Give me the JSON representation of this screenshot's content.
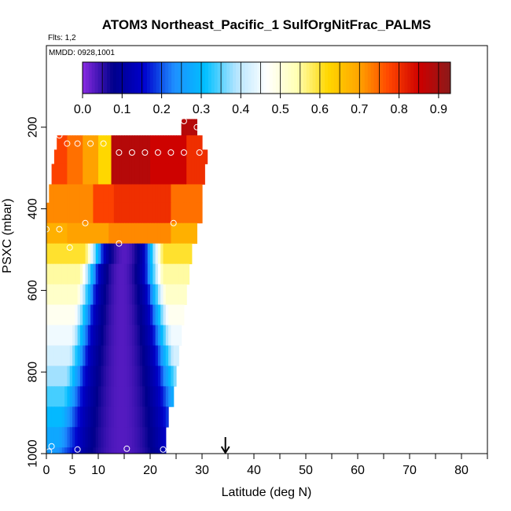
{
  "chart_data": {
    "type": "heatmap",
    "title": "ATOM3 Northeast_Pacific_1 SulfOrgNitFrac_PALMS",
    "subtitle": "Flts: 1,2",
    "annotation": "MMDD: 0928,1001",
    "xlabel": "Latitude (deg N)",
    "ylabel": "PSXC (mbar)",
    "xlim": [
      0,
      85
    ],
    "ylim": [
      1000,
      0
    ],
    "x_ticks": [
      0,
      5,
      10,
      20,
      30,
      40,
      50,
      60,
      70,
      80
    ],
    "y_ticks": [
      200,
      400,
      600,
      800,
      1000
    ],
    "grid": false,
    "colorbar": {
      "ticks": [
        "0.0",
        "0.1",
        "0.2",
        "0.3",
        "0.4",
        "0.5",
        "0.6",
        "0.7",
        "0.8",
        "0.9"
      ],
      "range": [
        0,
        0.93
      ],
      "colors": [
        "#8a2be2",
        "#00008b",
        "#0000cd",
        "#1e90ff",
        "#00bfff",
        "#b3e5ff",
        "#ffffff",
        "#ffffb3",
        "#ffd700",
        "#ffa500",
        "#ff4500",
        "#cc0000",
        "#8b1a1a"
      ]
    },
    "marker": {
      "x": 34.5,
      "label": "down-arrow"
    },
    "bands": [
      {
        "p_top": 180,
        "p_bot": 220,
        "lat_start": 26,
        "lat_end": 29,
        "profile": "red_top"
      },
      {
        "p_top": 220,
        "p_bot": 255,
        "lat_start": 2,
        "lat_end": 30,
        "profile": "upper"
      },
      {
        "p_top": 255,
        "p_bot": 290,
        "lat_start": 1.5,
        "lat_end": 31,
        "profile": "upper"
      },
      {
        "p_top": 290,
        "p_bot": 340,
        "lat_start": 1,
        "lat_end": 30.5,
        "profile": "upper"
      },
      {
        "p_top": 340,
        "p_bot": 385,
        "lat_start": 0.5,
        "lat_end": 30,
        "profile": "mid_upper"
      },
      {
        "p_top": 385,
        "p_bot": 435,
        "lat_start": 0,
        "lat_end": 30,
        "profile": "mid_upper"
      },
      {
        "p_top": 435,
        "p_bot": 485,
        "lat_start": 0,
        "lat_end": 29,
        "profile": "mid_lower"
      },
      {
        "p_top": 485,
        "p_bot": 535,
        "lat_start": 0,
        "lat_end": 28,
        "profile": "lower",
        "dip_center": 15,
        "dip_width": 4.0,
        "edge_value": 0.6
      },
      {
        "p_top": 535,
        "p_bot": 585,
        "lat_start": 0,
        "lat_end": 27.5,
        "profile": "lower",
        "dip_center": 14.5,
        "dip_width": 4.5,
        "edge_value": 0.55
      },
      {
        "p_top": 585,
        "p_bot": 635,
        "lat_start": 0,
        "lat_end": 27,
        "profile": "lower",
        "dip_center": 14.5,
        "dip_width": 5.0,
        "edge_value": 0.52
      },
      {
        "p_top": 635,
        "p_bot": 685,
        "lat_start": 0,
        "lat_end": 26.5,
        "profile": "lower",
        "dip_center": 14.5,
        "dip_width": 5.5,
        "edge_value": 0.48
      },
      {
        "p_top": 685,
        "p_bot": 735,
        "lat_start": 0,
        "lat_end": 26,
        "profile": "lower",
        "dip_center": 14.5,
        "dip_width": 6.0,
        "edge_value": 0.45
      },
      {
        "p_top": 735,
        "p_bot": 785,
        "lat_start": 0,
        "lat_end": 25.5,
        "profile": "lower",
        "dip_center": 14.5,
        "dip_width": 6.5,
        "edge_value": 0.42
      },
      {
        "p_top": 785,
        "p_bot": 835,
        "lat_start": 0,
        "lat_end": 25,
        "profile": "lower",
        "dip_center": 14.5,
        "dip_width": 7.0,
        "edge_value": 0.38
      },
      {
        "p_top": 835,
        "p_bot": 885,
        "lat_start": 0,
        "lat_end": 24.5,
        "profile": "lower",
        "dip_center": 14.5,
        "dip_width": 7.5,
        "edge_value": 0.34
      },
      {
        "p_top": 885,
        "p_bot": 935,
        "lat_start": 0,
        "lat_end": 23.5,
        "profile": "lower",
        "dip_center": 14.5,
        "dip_width": 8.0,
        "edge_value": 0.3
      },
      {
        "p_top": 935,
        "p_bot": 985,
        "lat_start": 0,
        "lat_end": 23,
        "profile": "lower",
        "dip_center": 14.5,
        "dip_width": 8.5,
        "edge_value": 0.27
      },
      {
        "p_top": 985,
        "p_bot": 1000,
        "lat_start": 0,
        "lat_end": 23,
        "profile": "lower",
        "dip_center": 14.5,
        "dip_width": 9.0,
        "edge_value": 0.25
      }
    ],
    "points": [
      {
        "lat": 26.5,
        "p": 185
      },
      {
        "lat": 29,
        "p": 200
      },
      {
        "lat": 2.5,
        "p": 220
      },
      {
        "lat": 4,
        "p": 240
      },
      {
        "lat": 6,
        "p": 240
      },
      {
        "lat": 8.5,
        "p": 240
      },
      {
        "lat": 11,
        "p": 240
      },
      {
        "lat": 14,
        "p": 262
      },
      {
        "lat": 16.5,
        "p": 262
      },
      {
        "lat": 19,
        "p": 262
      },
      {
        "lat": 21.5,
        "p": 262
      },
      {
        "lat": 24,
        "p": 262
      },
      {
        "lat": 26.5,
        "p": 262
      },
      {
        "lat": 29.5,
        "p": 262
      },
      {
        "lat": 0,
        "p": 450
      },
      {
        "lat": 2.5,
        "p": 450
      },
      {
        "lat": 7.5,
        "p": 435
      },
      {
        "lat": 24.5,
        "p": 435
      },
      {
        "lat": 14,
        "p": 485
      },
      {
        "lat": 4.5,
        "p": 495
      },
      {
        "lat": 1,
        "p": 982
      },
      {
        "lat": 0.5,
        "p": 995
      },
      {
        "lat": 6,
        "p": 990
      },
      {
        "lat": 15.5,
        "p": 988
      },
      {
        "lat": 22.5,
        "p": 990
      }
    ]
  }
}
